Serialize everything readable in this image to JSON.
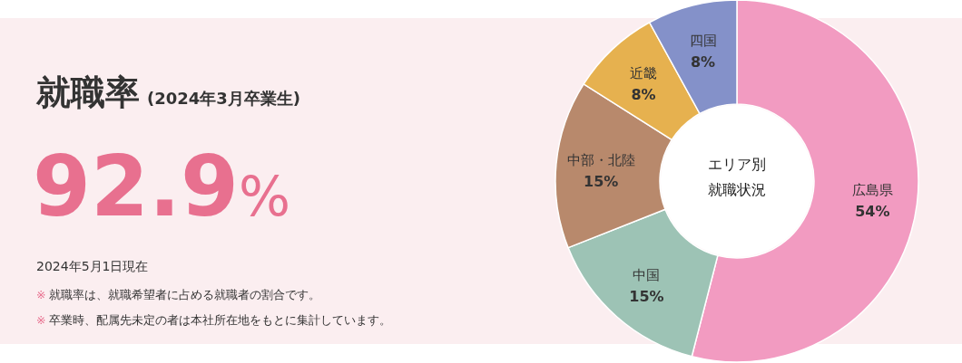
{
  "chart_data": [
    {
      "type": "other",
      "title": "就職率",
      "subtitle": "(2024年3月卒業生)",
      "annotations": [
        "92.9%",
        "2024年5月1日現在",
        "※ 就職率は、就職希望者に占める就職者の割合です。",
        "※ 卒業時、配属先未定の者は本社所在地をもとに集計しています。"
      ]
    },
    {
      "type": "donut",
      "title": "エリア別就職状況",
      "categories": [
        "広島県",
        "中国",
        "中部・北陸",
        "近畿",
        "四国"
      ],
      "values": [
        54,
        15,
        15,
        8,
        8
      ],
      "colors": [
        "#f29bc1",
        "#9dc3b5",
        "#b8896c",
        "#e6b14f",
        "#8491c9"
      ],
      "value_labels": [
        "54%",
        "15%",
        "15%",
        "8%",
        "8%"
      ]
    }
  ]
}
